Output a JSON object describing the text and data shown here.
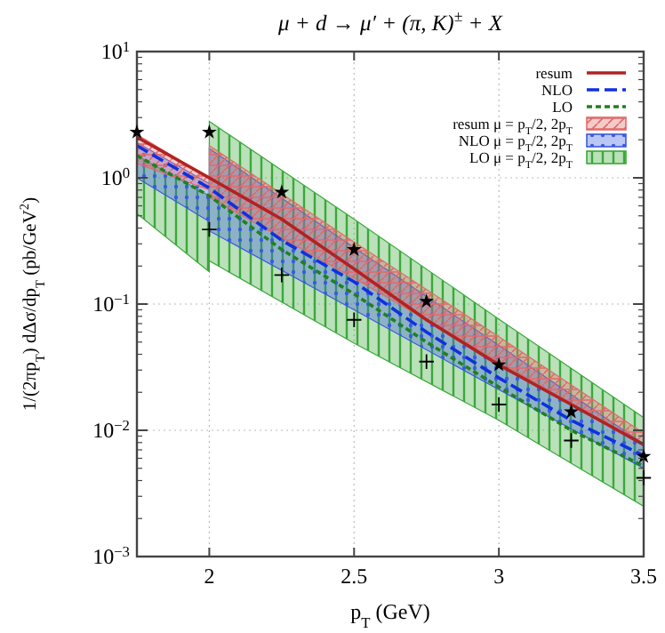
{
  "chart_data": {
    "type": "line",
    "title": "μ + d → μ′ + (π, K)$^{±}$ + X",
    "xlabel": "p$_{T}$ (GeV)",
    "ylabel": "1/(2πp$_{T}$) dΔσ/dp$_{T}$ (pb/GeV$^{2}$)",
    "log": "y",
    "grid": true,
    "legend": "top right",
    "xlim": [
      1.75,
      3.5
    ],
    "xticks": [
      2,
      2.5,
      3,
      3.5
    ],
    "ylim": [
      0.001,
      10
    ],
    "yticks": [
      {
        "value": 0.001,
        "label": "10$^{−3}$"
      },
      {
        "value": 0.01,
        "label": "10$^{−2}$"
      },
      {
        "value": 0.1,
        "label": "10$^{−1}$"
      },
      {
        "value": 1,
        "label": "10$^{0}$"
      },
      {
        "value": 10,
        "label": "10$^{1}$"
      }
    ],
    "series": [
      {
        "name": "resum μ = p$_{T}$/2, 2p$_{T}$",
        "type": "line",
        "color": "#e06a6a",
        "x": [
          1.75,
          2,
          2,
          2.5,
          3,
          3.5
        ],
        "values": [
          null,
          null,
          null,
          null,
          null,
          null
        ],
        "lower": [
          1.3,
          0.8,
          0.7,
          0.16,
          0.035,
          0.0077
        ],
        "upper": [
          2.2,
          1.0,
          1.8,
          0.31,
          0.055,
          0.0095
        ]
      },
      {
        "name": "NLO μ = p$_{T}$/2, 2p$_{T}$",
        "type": "line",
        "color": "#3a5ae0",
        "x": [
          1.75,
          2,
          2,
          2.5,
          3,
          3.5
        ],
        "values": [
          null,
          null,
          null,
          null,
          null,
          null
        ],
        "lower": [
          1.0,
          0.45,
          0.38,
          0.09,
          0.021,
          0.005
        ],
        "upper": [
          1.9,
          0.9,
          1.7,
          0.28,
          0.047,
          0.0078
        ]
      },
      {
        "name": "LO μ = p$_{T}$/2, 2p$_{T}$",
        "type": "line",
        "color": "#3aa83a",
        "x": [
          1.75,
          2,
          2,
          2.5,
          3,
          3.5
        ],
        "values": [
          null,
          null,
          null,
          null,
          null,
          null
        ],
        "lower": [
          0.52,
          0.18,
          0.22,
          0.049,
          0.012,
          0.0025
        ],
        "upper": [
          1.5,
          0.72,
          2.8,
          0.47,
          0.076,
          0.0126
        ]
      },
      {
        "name": "resum",
        "line_style": "solid",
        "color": "#b22222",
        "x": [
          1.75,
          2,
          2.25,
          2.5,
          2.75,
          3,
          3.25,
          3.5
        ],
        "values": [
          2.1,
          1.0,
          0.47,
          0.19,
          0.075,
          0.033,
          0.016,
          0.0077
        ]
      },
      {
        "name": "NLO",
        "line_style": "dashed",
        "color": "#1030e0",
        "x": [
          1.75,
          2,
          2.25,
          2.5,
          2.75,
          3,
          3.25,
          3.5
        ],
        "values": [
          1.8,
          0.83,
          0.32,
          0.15,
          0.06,
          0.026,
          0.012,
          0.0063
        ]
      },
      {
        "name": "LO",
        "line_style": "dotted",
        "color": "#208020",
        "x": [
          1.75,
          2,
          2.25,
          2.5,
          2.75,
          3,
          3.25,
          3.5
        ],
        "values": [
          1.5,
          0.72,
          0.27,
          0.12,
          0.05,
          0.022,
          0.01,
          0.0052
        ]
      },
      {
        "type": "scatter",
        "marker": "star",
        "color": "#000000",
        "x": [
          1.75,
          2,
          2.25,
          2.5,
          2.75,
          3,
          3.25,
          3.5
        ],
        "values": [
          2.3,
          2.3,
          0.77,
          0.27,
          0.105,
          0.033,
          0.014,
          0.0062
        ]
      },
      {
        "type": "scatter",
        "marker": "cross",
        "color": "#000000",
        "x": [
          2,
          2.25,
          2.5,
          2.75,
          3,
          3.25,
          3.5
        ],
        "values": [
          0.39,
          0.17,
          0.075,
          0.035,
          0.016,
          0.0083,
          0.0042
        ]
      }
    ]
  }
}
